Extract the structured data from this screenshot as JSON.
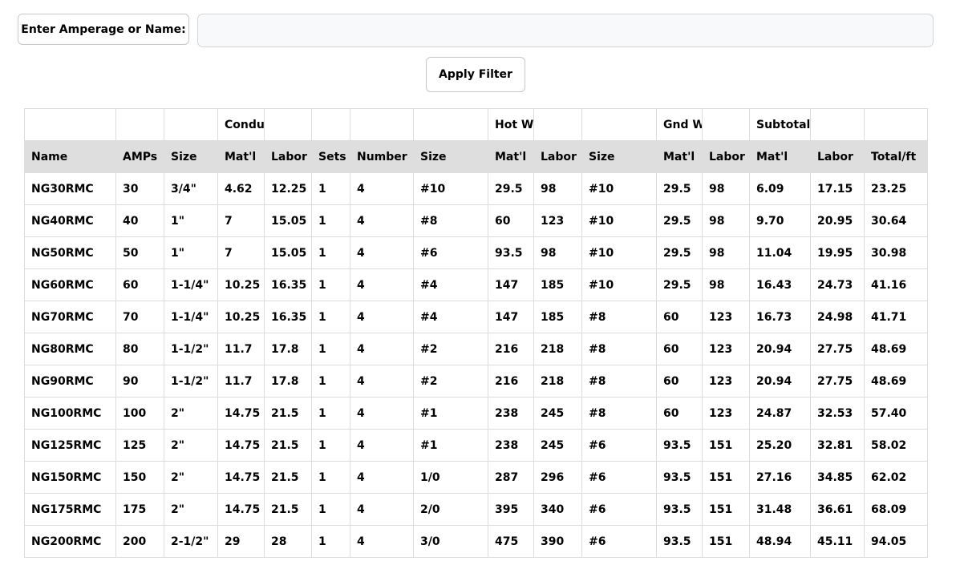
{
  "filter": {
    "label": "Enter Amperage or Name:",
    "value": "",
    "placeholder": "",
    "apply_label": "Apply Filter"
  },
  "table": {
    "group_headers": [
      "",
      "",
      "",
      "Conduits",
      "",
      "",
      "",
      "",
      "Hot Wires",
      "",
      "",
      "Gnd Wire",
      "",
      "Subtotals/ft",
      "",
      ""
    ],
    "columns": [
      "Name",
      "AMPs",
      "Size",
      "Mat'l",
      "Labor",
      "Sets",
      "Number",
      "Size",
      "Mat'l",
      "Labor",
      "Size",
      "Mat'l",
      "Labor",
      "Mat'l",
      "Labor",
      "Total/ft"
    ],
    "rows": [
      [
        "NG30RMC",
        "30",
        "3/4\"",
        "4.62",
        "12.25",
        "1",
        "4",
        "#10",
        "29.5",
        "98",
        "#10",
        "29.5",
        "98",
        "6.09",
        "17.15",
        "23.25"
      ],
      [
        "NG40RMC",
        "40",
        "1\"",
        "7",
        "15.05",
        "1",
        "4",
        "#8",
        "60",
        "123",
        "#10",
        "29.5",
        "98",
        "9.70",
        "20.95",
        "30.64"
      ],
      [
        "NG50RMC",
        "50",
        "1\"",
        "7",
        "15.05",
        "1",
        "4",
        "#6",
        "93.5",
        "98",
        "#10",
        "29.5",
        "98",
        "11.04",
        "19.95",
        "30.98"
      ],
      [
        "NG60RMC",
        "60",
        "1-1/4\"",
        "10.25",
        "16.35",
        "1",
        "4",
        "#4",
        "147",
        "185",
        "#10",
        "29.5",
        "98",
        "16.43",
        "24.73",
        "41.16"
      ],
      [
        "NG70RMC",
        "70",
        "1-1/4\"",
        "10.25",
        "16.35",
        "1",
        "4",
        "#4",
        "147",
        "185",
        "#8",
        "60",
        "123",
        "16.73",
        "24.98",
        "41.71"
      ],
      [
        "NG80RMC",
        "80",
        "1-1/2\"",
        "11.7",
        "17.8",
        "1",
        "4",
        "#2",
        "216",
        "218",
        "#8",
        "60",
        "123",
        "20.94",
        "27.75",
        "48.69"
      ],
      [
        "NG90RMC",
        "90",
        "1-1/2\"",
        "11.7",
        "17.8",
        "1",
        "4",
        "#2",
        "216",
        "218",
        "#8",
        "60",
        "123",
        "20.94",
        "27.75",
        "48.69"
      ],
      [
        "NG100RMC",
        "100",
        "2\"",
        "14.75",
        "21.5",
        "1",
        "4",
        "#1",
        "238",
        "245",
        "#8",
        "60",
        "123",
        "24.87",
        "32.53",
        "57.40"
      ],
      [
        "NG125RMC",
        "125",
        "2\"",
        "14.75",
        "21.5",
        "1",
        "4",
        "#1",
        "238",
        "245",
        "#6",
        "93.5",
        "151",
        "25.20",
        "32.81",
        "58.02"
      ],
      [
        "NG150RMC",
        "150",
        "2\"",
        "14.75",
        "21.5",
        "1",
        "4",
        "1/0",
        "287",
        "296",
        "#6",
        "93.5",
        "151",
        "27.16",
        "34.85",
        "62.02"
      ],
      [
        "NG175RMC",
        "175",
        "2\"",
        "14.75",
        "21.5",
        "1",
        "4",
        "2/0",
        "395",
        "340",
        "#6",
        "93.5",
        "151",
        "31.48",
        "36.61",
        "68.09"
      ],
      [
        "NG200RMC",
        "200",
        "2-1/2\"",
        "29",
        "28",
        "1",
        "4",
        "3/0",
        "475",
        "390",
        "#6",
        "93.5",
        "151",
        "48.94",
        "45.11",
        "94.05"
      ]
    ]
  },
  "colors": {
    "header_background": "#dedede",
    "border": "#dcdcdc",
    "input_background": "#f8f9fa"
  }
}
